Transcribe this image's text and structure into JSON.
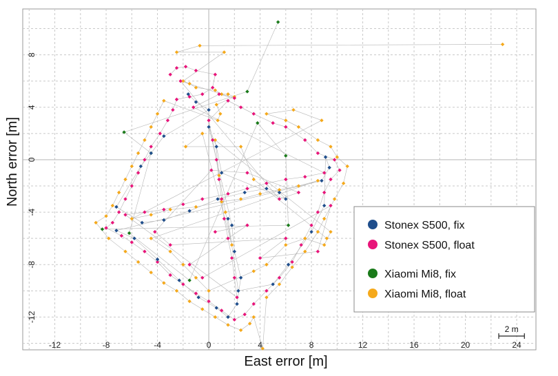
{
  "chart_data": {
    "type": "scatter",
    "xlabel": "East error [m]",
    "ylabel": "North error [m]",
    "xlim": [
      -14.5,
      25.5
    ],
    "ylim": [
      -14.5,
      11.5
    ],
    "x_ticks": [
      -12,
      -8,
      -4,
      0,
      4,
      8,
      12,
      16,
      20,
      24
    ],
    "y_ticks": [
      8,
      4,
      0,
      -4,
      -8,
      -12
    ],
    "grid": true,
    "legend_position": "right",
    "scale_bar": {
      "label": "2 m",
      "length": 2
    },
    "series": [
      {
        "name": "Stonex S500, fix",
        "color": "#1f4e8c",
        "points": [
          [
            -1.6,
            5.0
          ],
          [
            -1.0,
            4.4
          ],
          [
            0.0,
            3.8
          ],
          [
            -3.5,
            1.8
          ],
          [
            -4.5,
            0.5
          ],
          [
            -5.3,
            -0.5
          ],
          [
            -7.2,
            -3.6
          ],
          [
            -5.2,
            -4.8
          ],
          [
            -3.5,
            -4.6
          ],
          [
            -1.5,
            -3.9
          ],
          [
            0.7,
            -3.0
          ],
          [
            2.8,
            -2.5
          ],
          [
            4.5,
            -2.2
          ],
          [
            5.5,
            -2.5
          ],
          [
            6.0,
            -3.0
          ],
          [
            1.0,
            -1.0
          ],
          [
            0.6,
            1.0
          ],
          [
            0.0,
            2.5
          ],
          [
            1.8,
            -5.0
          ],
          [
            2.0,
            -7.0
          ],
          [
            2.5,
            -9.0
          ],
          [
            2.2,
            -11.0
          ],
          [
            1.5,
            -12.0
          ],
          [
            0.6,
            -11.3
          ],
          [
            -0.8,
            -10.5
          ],
          [
            -2.3,
            -9.2
          ],
          [
            -4.0,
            -7.6
          ],
          [
            -5.8,
            -6.0
          ],
          [
            -7.2,
            -5.4
          ],
          [
            8.8,
            -1.6
          ],
          [
            9.4,
            -0.6
          ],
          [
            9.1,
            0.2
          ],
          [
            9.0,
            -3.5
          ],
          [
            8.0,
            -5.5
          ],
          [
            6.2,
            -8.0
          ],
          [
            5.0,
            -9.5
          ],
          [
            2.3,
            -10.0
          ],
          [
            1.5,
            -4.5
          ]
        ]
      },
      {
        "name": "Stonex S500, float",
        "color": "#e8157a",
        "points": [
          [
            -3.0,
            6.5
          ],
          [
            -2.5,
            7.0
          ],
          [
            -1.8,
            7.1
          ],
          [
            -1.0,
            6.8
          ],
          [
            0.5,
            6.5
          ],
          [
            0.3,
            5.5
          ],
          [
            -0.5,
            5.0
          ],
          [
            -1.5,
            4.8
          ],
          [
            -2.5,
            4.6
          ],
          [
            -2.8,
            3.8
          ],
          [
            -3.2,
            3.0
          ],
          [
            -3.8,
            2.0
          ],
          [
            -4.5,
            1.0
          ],
          [
            -5.0,
            0.0
          ],
          [
            -5.5,
            -1.0
          ],
          [
            -6.0,
            -2.0
          ],
          [
            -6.5,
            -3.0
          ],
          [
            -7.0,
            -4.0
          ],
          [
            -7.5,
            -4.8
          ],
          [
            -8.0,
            -5.2
          ],
          [
            -6.8,
            -5.8
          ],
          [
            -6.0,
            -6.3
          ],
          [
            -5.0,
            -7.0
          ],
          [
            -4.0,
            -7.8
          ],
          [
            -3.0,
            -8.8
          ],
          [
            -2.0,
            -9.5
          ],
          [
            -1.0,
            -10.2
          ],
          [
            0.0,
            -10.8
          ],
          [
            1.0,
            -11.5
          ],
          [
            2.0,
            -12.2
          ],
          [
            2.8,
            -11.8
          ],
          [
            3.5,
            -11.0
          ],
          [
            4.5,
            -10.0
          ],
          [
            5.5,
            -9.0
          ],
          [
            6.5,
            -7.8
          ],
          [
            7.2,
            -6.5
          ],
          [
            8.0,
            -5.0
          ],
          [
            8.5,
            -4.0
          ],
          [
            9.0,
            -2.5
          ],
          [
            9.5,
            -1.5
          ],
          [
            10.2,
            -0.8
          ],
          [
            9.8,
            0.0
          ],
          [
            8.5,
            0.5
          ],
          [
            7.5,
            1.5
          ],
          [
            6.0,
            2.5
          ],
          [
            5.0,
            2.8
          ],
          [
            3.5,
            3.5
          ],
          [
            2.5,
            4.0
          ],
          [
            1.5,
            4.5
          ],
          [
            0.0,
            3.0
          ],
          [
            0.3,
            1.5
          ],
          [
            0.6,
            0.0
          ],
          [
            0.8,
            -1.5
          ],
          [
            1.0,
            -3.0
          ],
          [
            1.2,
            -4.5
          ],
          [
            1.5,
            -6.0
          ],
          [
            1.8,
            -7.5
          ],
          [
            2.0,
            -9.0
          ],
          [
            2.2,
            -10.5
          ],
          [
            -6.5,
            -4.2
          ],
          [
            -5.0,
            -4.0
          ],
          [
            -3.5,
            -3.8
          ],
          [
            -2.0,
            -3.4
          ],
          [
            -0.5,
            -3.0
          ],
          [
            1.5,
            -2.6
          ],
          [
            3.0,
            -2.2
          ],
          [
            4.5,
            -1.8
          ],
          [
            6.0,
            -1.5
          ],
          [
            7.5,
            -1.3
          ],
          [
            9.0,
            -1.0
          ],
          [
            -1.2,
            4.0
          ],
          [
            0.8,
            5.0
          ],
          [
            2.0,
            4.7
          ],
          [
            -2.2,
            6.0
          ],
          [
            5.5,
            -3.0
          ],
          [
            7.0,
            -2.5
          ],
          [
            3.0,
            -1.0
          ],
          [
            0.2,
            -0.8
          ],
          [
            -4.2,
            -5.5
          ],
          [
            -3.0,
            -6.5
          ],
          [
            6.0,
            -6.0
          ],
          [
            4.0,
            -7.5
          ],
          [
            8.5,
            -7.0
          ],
          [
            9.5,
            -3.5
          ],
          [
            -0.5,
            -9.0
          ],
          [
            -1.5,
            -8.0
          ],
          [
            3.0,
            -5.0
          ],
          [
            0.5,
            -5.5
          ]
        ]
      },
      {
        "name": "Xiaomi Mi8, fix",
        "color": "#1a7a1a",
        "points": [
          [
            5.4,
            10.5
          ],
          [
            3.0,
            5.2
          ],
          [
            -6.6,
            2.1
          ],
          [
            -4.5,
            0.5
          ],
          [
            -6.2,
            -5.6
          ],
          [
            -1.5,
            -9.2
          ],
          [
            3.8,
            2.8
          ],
          [
            6.0,
            0.3
          ],
          [
            6.2,
            -5.0
          ],
          [
            -8.3,
            -5.3
          ]
        ]
      },
      {
        "name": "Xiaomi Mi8, float",
        "color": "#f5a91b",
        "points": [
          [
            22.9,
            8.8
          ],
          [
            -0.7,
            8.7
          ],
          [
            -2.5,
            8.2
          ],
          [
            1.2,
            8.2
          ],
          [
            -2.0,
            6.0
          ],
          [
            -1.5,
            5.8
          ],
          [
            -1.0,
            5.5
          ],
          [
            0.5,
            5.3
          ],
          [
            1.0,
            5.0
          ],
          [
            1.5,
            5.0
          ],
          [
            2.0,
            4.8
          ],
          [
            0.6,
            4.2
          ],
          [
            0.9,
            3.5
          ],
          [
            0.7,
            3.0
          ],
          [
            -3.5,
            4.5
          ],
          [
            -4.0,
            3.5
          ],
          [
            -4.5,
            2.5
          ],
          [
            -5.0,
            1.5
          ],
          [
            -5.5,
            0.5
          ],
          [
            -6.0,
            -0.5
          ],
          [
            -6.5,
            -1.5
          ],
          [
            -7.0,
            -2.5
          ],
          [
            -7.5,
            -3.5
          ],
          [
            -8.0,
            -4.3
          ],
          [
            -8.8,
            -4.8
          ],
          [
            -7.8,
            -6.0
          ],
          [
            -6.5,
            -7.0
          ],
          [
            -5.5,
            -7.8
          ],
          [
            -4.5,
            -8.6
          ],
          [
            -3.5,
            -9.4
          ],
          [
            -2.5,
            -10.0
          ],
          [
            -1.5,
            -10.8
          ],
          [
            -0.5,
            -11.4
          ],
          [
            0.5,
            -12.0
          ],
          [
            1.5,
            -12.6
          ],
          [
            2.5,
            -13.0
          ],
          [
            3.2,
            -12.5
          ],
          [
            3.5,
            -12.0
          ],
          [
            4.2,
            -14.4
          ],
          [
            4.5,
            -10.5
          ],
          [
            5.5,
            -9.5
          ],
          [
            6.5,
            -8.2
          ],
          [
            7.5,
            -7.0
          ],
          [
            8.5,
            -5.5
          ],
          [
            9.0,
            -4.5
          ],
          [
            9.8,
            -3.0
          ],
          [
            10.5,
            -1.8
          ],
          [
            10.8,
            -0.5
          ],
          [
            10.0,
            0.2
          ],
          [
            9.5,
            1.0
          ],
          [
            8.5,
            1.5
          ],
          [
            7.0,
            2.5
          ],
          [
            6.0,
            3.0
          ],
          [
            4.5,
            3.5
          ],
          [
            6.6,
            3.8
          ],
          [
            8.8,
            3.0
          ],
          [
            -6.0,
            -4.5
          ],
          [
            -4.5,
            -4.2
          ],
          [
            -3.0,
            -3.8
          ],
          [
            -1.0,
            -3.6
          ],
          [
            1.0,
            -3.2
          ],
          [
            2.5,
            -3.0
          ],
          [
            4.0,
            -2.6
          ],
          [
            5.5,
            -2.3
          ],
          [
            7.0,
            -2.0
          ],
          [
            8.5,
            -1.6
          ],
          [
            -4.5,
            -6.0
          ],
          [
            -3.0,
            -7.0
          ],
          [
            -2.0,
            -8.0
          ],
          [
            -1.0,
            -9.0
          ],
          [
            0.0,
            -10.0
          ],
          [
            3.5,
            -8.5
          ],
          [
            4.5,
            -8.0
          ],
          [
            6.0,
            -6.5
          ],
          [
            7.5,
            -6.0
          ],
          [
            9.0,
            -6.5
          ],
          [
            9.5,
            -5.5
          ],
          [
            0.5,
            1.5
          ],
          [
            0.8,
            -1.2
          ],
          [
            1.3,
            -4.0
          ],
          [
            1.8,
            -6.5
          ],
          [
            -0.5,
            2.0
          ],
          [
            -1.8,
            1.0
          ],
          [
            2.5,
            1.0
          ],
          [
            3.5,
            -1.5
          ],
          [
            9.2,
            -6.0
          ]
        ]
      }
    ]
  }
}
